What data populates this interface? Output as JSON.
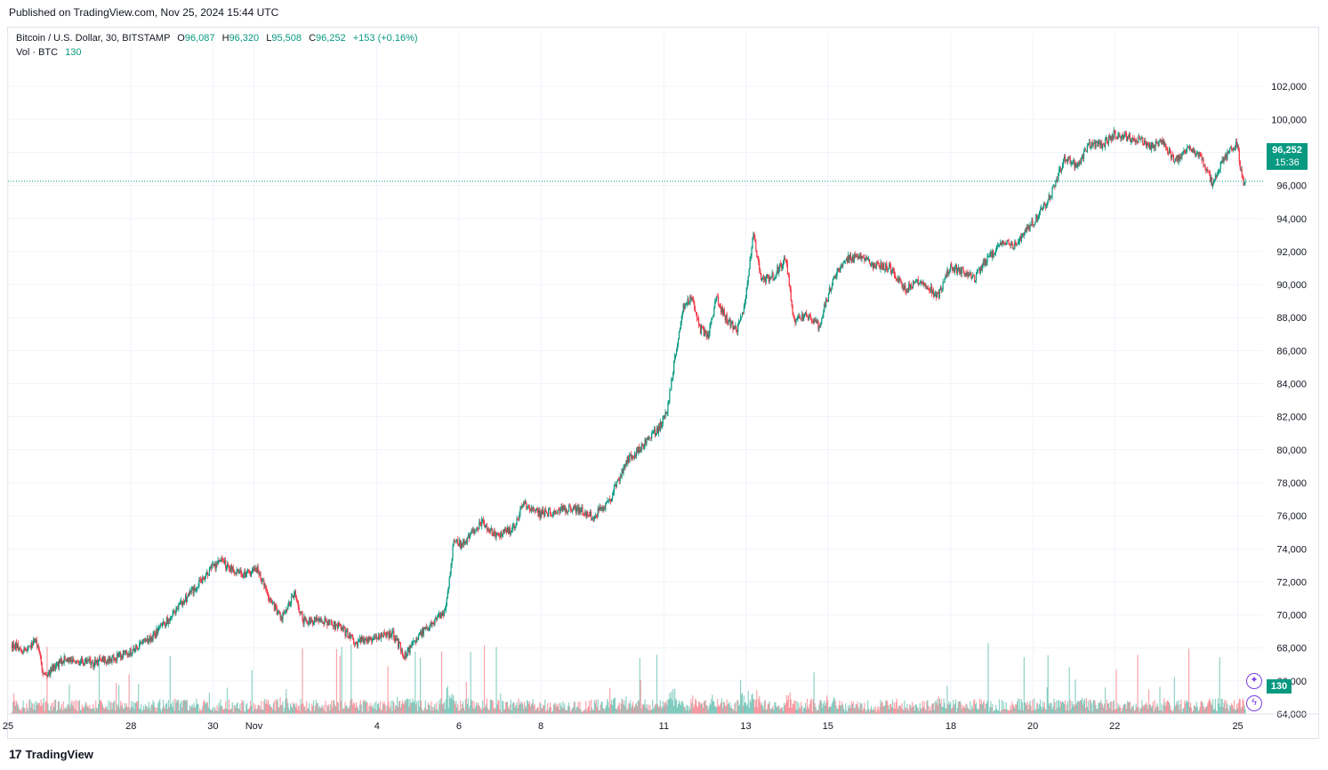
{
  "header": {
    "published": "Published on TradingView.com, Nov 25, 2024 15:44 UTC"
  },
  "legend": {
    "symbol": "Bitcoin / U.S. Dollar, 30, BITSTAMP",
    "o_label": "O",
    "o_value": "96,087",
    "h_label": "H",
    "h_value": "96,320",
    "l_label": "L",
    "l_value": "95,508",
    "c_label": "C",
    "c_value": "96,252",
    "change": "+153 (+0.16%)",
    "vol_label": "Vol · BTC",
    "vol_value": "130"
  },
  "badges": {
    "price": "96,252",
    "time": "15:36",
    "volume": "130"
  },
  "footer": {
    "logo_text": "TradingView"
  },
  "colors": {
    "up": "#089981",
    "down": "#f23645",
    "grid": "#f0f3fa",
    "accent": "#7b3fe4"
  },
  "icons": [
    "sparkle-icon",
    "lightning-icon",
    "tradingview-logo-icon"
  ],
  "chart_data": {
    "type": "candlestick",
    "interval": "30",
    "ylim": [
      64000,
      103000
    ],
    "yticks": [
      "102,000",
      "100,000",
      "98,000",
      "96,000",
      "94,000",
      "92,000",
      "90,000",
      "88,000",
      "86,000",
      "84,000",
      "82,000",
      "80,000",
      "78,000",
      "76,000",
      "74,000",
      "72,000",
      "70,000",
      "68,000",
      "66,000",
      "64,000"
    ],
    "xticks": [
      {
        "label": "25",
        "day": -0.1
      },
      {
        "label": "28",
        "day": 2.9
      },
      {
        "label": "30",
        "day": 4.9
      },
      {
        "label": "Nov",
        "day": 5.9
      },
      {
        "label": "4",
        "day": 8.9
      },
      {
        "label": "6",
        "day": 10.9
      },
      {
        "label": "8",
        "day": 12.9
      },
      {
        "label": "11",
        "day": 15.9
      },
      {
        "label": "13",
        "day": 17.9
      },
      {
        "label": "15",
        "day": 19.9
      },
      {
        "label": "18",
        "day": 22.9
      },
      {
        "label": "20",
        "day": 24.9
      },
      {
        "label": "22",
        "day": 26.9
      },
      {
        "label": "25",
        "day": 29.9
      }
    ],
    "last_price": 96252,
    "price_path": [
      [
        0.0,
        68200
      ],
      [
        0.4,
        67800
      ],
      [
        0.6,
        68600
      ],
      [
        0.8,
        66200
      ],
      [
        1.0,
        66800
      ],
      [
        1.3,
        67300
      ],
      [
        2.0,
        67100
      ],
      [
        2.5,
        67400
      ],
      [
        3.0,
        67900
      ],
      [
        3.5,
        68800
      ],
      [
        4.0,
        70200
      ],
      [
        4.4,
        71400
      ],
      [
        4.8,
        72600
      ],
      [
        5.1,
        73300
      ],
      [
        5.4,
        72700
      ],
      [
        5.7,
        72400
      ],
      [
        6.0,
        72800
      ],
      [
        6.3,
        70900
      ],
      [
        6.6,
        69800
      ],
      [
        6.9,
        71300
      ],
      [
        7.1,
        69700
      ],
      [
        7.6,
        69600
      ],
      [
        8.0,
        69300
      ],
      [
        8.4,
        68400
      ],
      [
        8.8,
        68600
      ],
      [
        9.3,
        68900
      ],
      [
        9.6,
        67500
      ],
      [
        10.0,
        68900
      ],
      [
        10.3,
        69500
      ],
      [
        10.6,
        70300
      ],
      [
        10.8,
        74500
      ],
      [
        11.0,
        74200
      ],
      [
        11.3,
        75200
      ],
      [
        11.5,
        75600
      ],
      [
        11.8,
        74900
      ],
      [
        12.2,
        75100
      ],
      [
        12.5,
        76700
      ],
      [
        12.9,
        76100
      ],
      [
        13.3,
        76300
      ],
      [
        13.7,
        76500
      ],
      [
        14.2,
        76000
      ],
      [
        14.6,
        76900
      ],
      [
        15.0,
        79300
      ],
      [
        15.4,
        80200
      ],
      [
        15.8,
        81300
      ],
      [
        16.0,
        82400
      ],
      [
        16.2,
        85800
      ],
      [
        16.4,
        88700
      ],
      [
        16.6,
        89200
      ],
      [
        16.8,
        87300
      ],
      [
        17.0,
        86900
      ],
      [
        17.2,
        89200
      ],
      [
        17.4,
        88100
      ],
      [
        17.7,
        87200
      ],
      [
        17.9,
        88900
      ],
      [
        18.1,
        93000
      ],
      [
        18.3,
        90300
      ],
      [
        18.6,
        90500
      ],
      [
        18.9,
        91600
      ],
      [
        19.1,
        87700
      ],
      [
        19.4,
        88200
      ],
      [
        19.7,
        87500
      ],
      [
        20.0,
        89900
      ],
      [
        20.3,
        91500
      ],
      [
        20.7,
        91700
      ],
      [
        21.0,
        91200
      ],
      [
        21.4,
        91100
      ],
      [
        21.8,
        89700
      ],
      [
        22.2,
        90200
      ],
      [
        22.6,
        89300
      ],
      [
        22.9,
        91100
      ],
      [
        23.2,
        90800
      ],
      [
        23.5,
        90400
      ],
      [
        23.8,
        91500
      ],
      [
        24.2,
        92600
      ],
      [
        24.5,
        92300
      ],
      [
        24.8,
        93400
      ],
      [
        25.1,
        94300
      ],
      [
        25.4,
        95700
      ],
      [
        25.7,
        97700
      ],
      [
        26.0,
        97200
      ],
      [
        26.3,
        98500
      ],
      [
        26.6,
        98400
      ],
      [
        26.9,
        99100
      ],
      [
        27.2,
        98900
      ],
      [
        27.5,
        98800
      ],
      [
        27.8,
        98400
      ],
      [
        28.1,
        98600
      ],
      [
        28.4,
        97500
      ],
      [
        28.7,
        98200
      ],
      [
        29.0,
        97900
      ],
      [
        29.3,
        96100
      ],
      [
        29.6,
        97700
      ],
      [
        29.9,
        98500
      ],
      [
        30.05,
        96100
      ],
      [
        30.1,
        96252
      ]
    ]
  }
}
